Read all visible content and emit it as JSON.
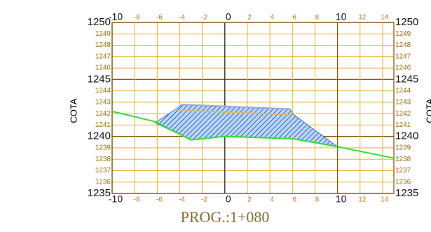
{
  "chart_data": {
    "type": "line",
    "title": "PROG.:1+080",
    "ylabel": "COTA",
    "xlim": [
      -10,
      15
    ],
    "ylim": [
      1235,
      1250
    ],
    "xticks": [
      -10,
      -8,
      -6,
      -4,
      -2,
      0,
      2,
      4,
      6,
      8,
      10,
      12,
      14
    ],
    "yticks": [
      1235,
      1236,
      1237,
      1238,
      1239,
      1240,
      1241,
      1242,
      1243,
      1244,
      1245,
      1246,
      1247,
      1248,
      1249,
      1250
    ],
    "grid": true,
    "series": [
      {
        "kind": "area",
        "color": "#3f7fd0",
        "x": [
          -6.2,
          -4.2,
          -3.8,
          5.8,
          6,
          10,
          6,
          0,
          -3,
          -6.2
        ],
        "values": [
          1241.2,
          1242.5,
          1242.8,
          1242.4,
          1242.0,
          1239.1,
          1239.8,
          1240.0,
          1239.7,
          1241.2
        ]
      },
      {
        "kind": "line",
        "color": "#9aa4dc",
        "x": [
          -3.8,
          5.8
        ],
        "values": [
          1242.8,
          1242.4
        ]
      },
      {
        "kind": "line",
        "color": "#d9b878",
        "x": [
          -4,
          6
        ],
        "values": [
          1242.3,
          1241.9
        ]
      },
      {
        "kind": "line",
        "color": "#2ee02e",
        "x": [
          -10,
          -6.2,
          -3,
          0,
          6,
          10,
          15
        ],
        "values": [
          1242.2,
          1241.3,
          1239.7,
          1240.0,
          1239.8,
          1239.1,
          1238.1
        ]
      }
    ]
  }
}
